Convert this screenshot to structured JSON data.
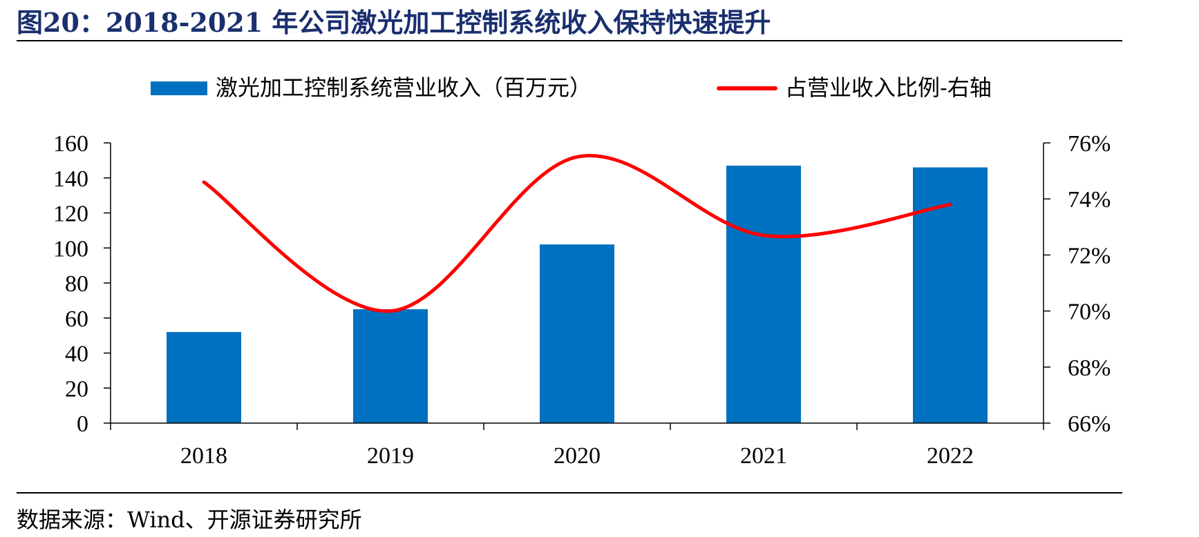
{
  "figure_title": "图20：2018-2021 年公司激光加工控制系统收入保持快速提升",
  "source_note": "数据来源：Wind、开源证券研究所",
  "colors": {
    "bar": "#0070C0",
    "line": "#FF0000",
    "title": "#1a2f6e"
  },
  "chart_data": {
    "type": "bar",
    "categories": [
      "2018",
      "2019",
      "2020",
      "2021",
      "2022"
    ],
    "series": [
      {
        "name": "激光加工控制系统营业收入（百万元）",
        "type": "bar",
        "axis": "left",
        "values": [
          52,
          65,
          102,
          147,
          146
        ]
      },
      {
        "name": "占营业收入比例-右轴",
        "type": "line",
        "axis": "right",
        "smooth": true,
        "values": [
          74.6,
          70.0,
          75.5,
          72.7,
          73.8
        ]
      }
    ],
    "left_axis": {
      "min": 0,
      "max": 160,
      "step": 20,
      "tick_labels": [
        "0",
        "20",
        "40",
        "60",
        "80",
        "100",
        "120",
        "140",
        "160"
      ]
    },
    "right_axis": {
      "min": 66,
      "max": 76,
      "step": 2,
      "tick_labels": [
        "66%",
        "68%",
        "70%",
        "72%",
        "74%",
        "76%"
      ]
    },
    "legend_position": "top-center",
    "grid": false
  }
}
